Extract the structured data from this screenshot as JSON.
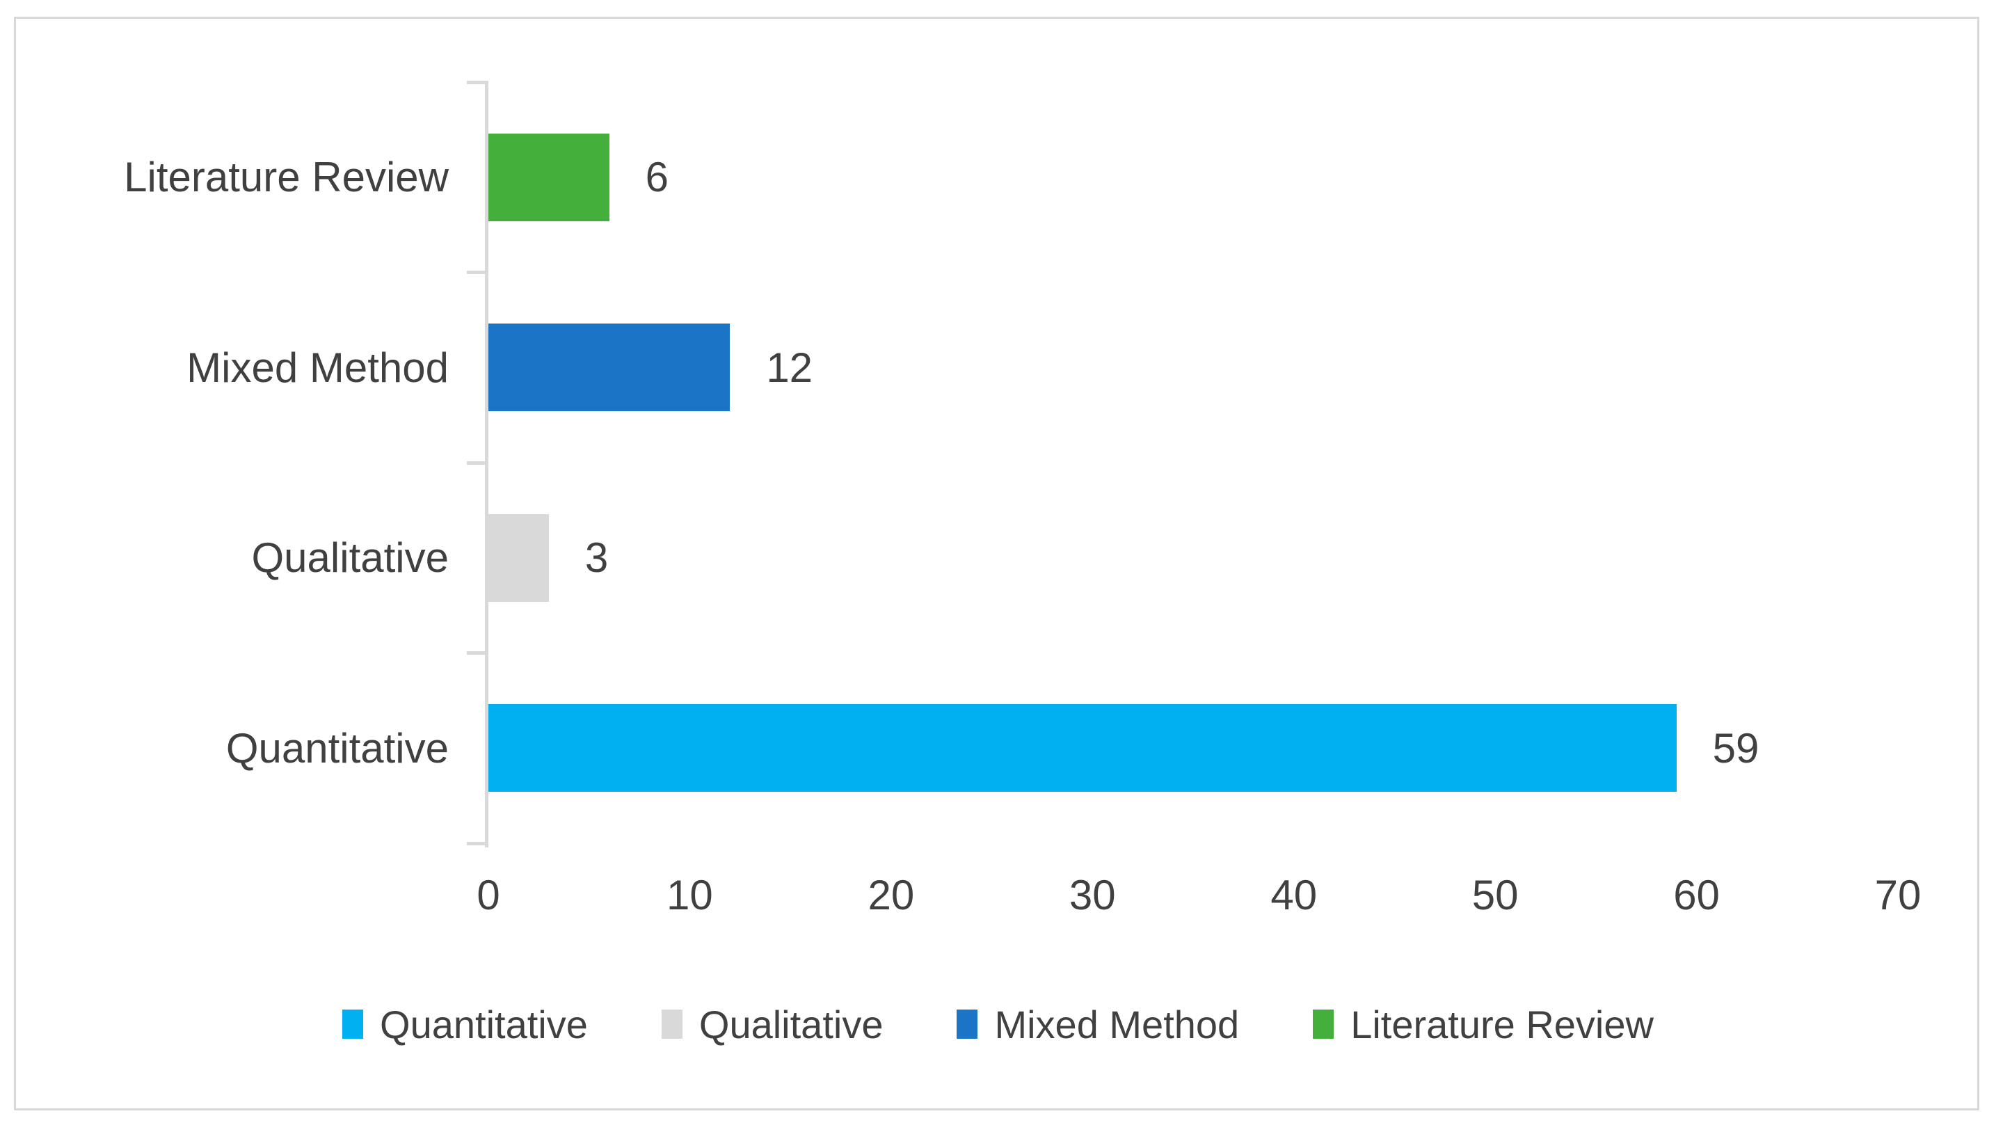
{
  "chart_data": {
    "type": "bar",
    "orientation": "horizontal",
    "title": "",
    "categories": [
      "Literature Review",
      "Mixed Method",
      "Qualitative",
      "Quantitative"
    ],
    "values": [
      6,
      12,
      3,
      59
    ],
    "colors": [
      "#44AF3B",
      "#1B74C6",
      "#D9D9D9",
      "#00B0F0"
    ],
    "data_labels": [
      "6",
      "12",
      "3",
      "59"
    ],
    "xlabel": "",
    "ylabel": "",
    "xlim": [
      0,
      70
    ],
    "xticks": [
      "0",
      "10",
      "20",
      "30",
      "40",
      "50",
      "60",
      "70"
    ],
    "grid": false,
    "legend": {
      "position": "bottom",
      "items": [
        {
          "label": "Quantitative",
          "color": "#00B0F0"
        },
        {
          "label": "Qualitative",
          "color": "#D9D9D9"
        },
        {
          "label": "Mixed Method",
          "color": "#1B74C6"
        },
        {
          "label": "Literature Review",
          "color": "#44AF3B"
        }
      ]
    }
  },
  "styles": {
    "axis_color": "#D9D9D9",
    "frame_border_color": "#D8D8D8",
    "text_color": "#404040",
    "background": "#FFFFFF"
  }
}
